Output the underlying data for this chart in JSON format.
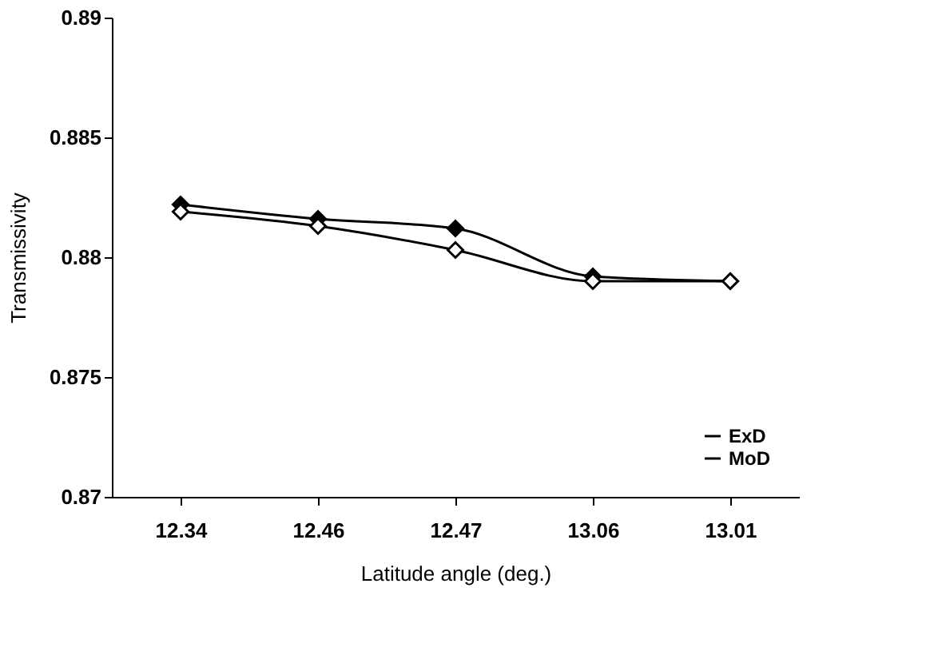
{
  "chart_data": {
    "type": "line",
    "xlabel": "Latitude angle (deg.)",
    "ylabel": "Transmissivity",
    "categories": [
      "12.34",
      "12.46",
      "12.47",
      "13.06",
      "13.01"
    ],
    "series": [
      {
        "name": "ExD",
        "color": "#000000",
        "marker": "diamond",
        "values": [
          0.8822,
          0.8816,
          0.8812,
          0.8792,
          0.879
        ]
      },
      {
        "name": "MoD",
        "color": "#000000",
        "marker": "diamond",
        "values": [
          0.8819,
          0.8813,
          0.8803,
          0.879,
          0.879
        ]
      }
    ],
    "ylim": [
      0.87,
      0.89
    ],
    "yticks": [
      0.87,
      0.875,
      0.88,
      0.885,
      0.89
    ],
    "grid": false,
    "legend": "bottom right",
    "line_style": "solid"
  }
}
